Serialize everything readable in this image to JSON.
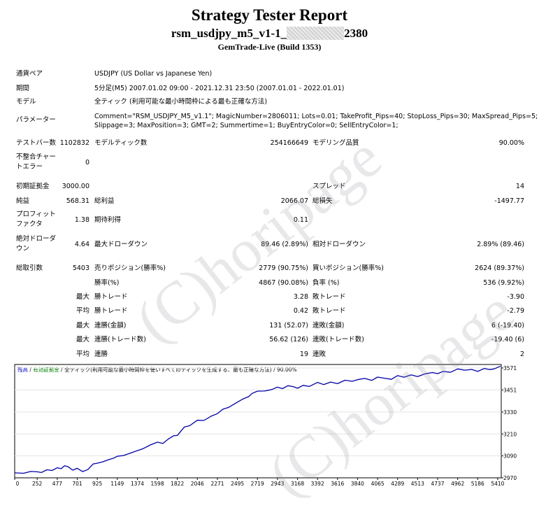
{
  "report": {
    "title": "Strategy Tester Report",
    "subtitle_prefix": "rsm_usdjpy_m5_v1-1_",
    "subtitle_suffix": "2380",
    "build": "GemTrade-Live (Build 1353)"
  },
  "info": {
    "pair_label": "通貨ペア",
    "pair_value": "USDJPY (US Dollar vs Japanese Yen)",
    "period_label": "期間",
    "period_value": "5分足(M5) 2007.01.02 09:00 - 2021.12.31 23:50 (2007.01.01 - 2022.01.01)",
    "model_label": "モデル",
    "model_value": "全ティック (利用可能な最小時間枠による最も正確な方法)",
    "params_label": "パラメーター",
    "params_line1": "Comment=\"RSM_USDJPY_M5_v1.1\"; MagicNumber=2806011; Lots=0.01; TakeProfit_Pips=40; StopLoss_Pips=30; MaxSpread_Pips=5;",
    "params_line2": "Slippage=3; MaxPosition=3; GMT=2; Summertime=1; BuyEntryColor=0; SellEntryColor=1;"
  },
  "stats": {
    "bars_label": "テストバー数",
    "bars_value": "1102832",
    "ticks_label": "モデルティック数",
    "ticks_value": "254166649",
    "quality_label": "モデリング品質",
    "quality_value": "90.00%",
    "mismatch_label1": "不整合チャー",
    "mismatch_label2": "トエラー",
    "mismatch_value": "0",
    "deposit_label": "初期証拠金",
    "deposit_value": "3000.00",
    "spread_label": "スプレッド",
    "spread_value": "14",
    "net_label": "純益",
    "net_value": "568.31",
    "gross_profit_label": "総利益",
    "gross_profit_value": "2066.07",
    "gross_loss_label": "総損失",
    "gross_loss_value": "-1497.77",
    "pf_label1": "プロフィット",
    "pf_label2": "ファクタ",
    "pf_value": "1.38",
    "expected_label": "期待利得",
    "expected_value": "0.11",
    "abs_dd_label1": "絶対ドローダ",
    "abs_dd_label2": "ウン",
    "abs_dd_value": "4.64",
    "max_dd_label": "最大ドローダウン",
    "max_dd_value": "89.46 (2.89%)",
    "rel_dd_label": "相対ドローダウン",
    "rel_dd_value": "2.89% (89.46)",
    "trades_label": "総取引数",
    "trades_value": "5403",
    "short_label": "売りポジション(勝率%)",
    "short_value": "2779 (90.75%)",
    "long_label": "買いポジション(勝率%)",
    "long_value": "2624 (89.37%)",
    "win_pct_label": "勝率(%)",
    "win_pct_value": "4867 (90.08%)",
    "loss_pct_label": "負率 (%)",
    "loss_pct_value": "536 (9.92%)",
    "max_label": "最大",
    "avg_label": "平均",
    "largest_win_label": "勝トレード",
    "largest_win_value": "3.28",
    "largest_loss_label": "敗トレード",
    "largest_loss_value": "-3.90",
    "avg_win_label": "勝トレード",
    "avg_win_value": "0.42",
    "avg_loss_label": "敗トレード",
    "avg_loss_value": "-2.79",
    "consec_wins_amt_label": "連勝(金額)",
    "consec_wins_amt_value": "131 (52.07)",
    "consec_loss_amt_label": "連敗(金額)",
    "consec_loss_amt_value": "6 (-19.40)",
    "consec_wins_trades_label": "連勝(トレード数)",
    "consec_wins_trades_value": "56.62 (126)",
    "consec_loss_trades_label": "連敗(トレード数)",
    "consec_loss_trades_value": "-19.40 (6)",
    "avg_wins_label": "連勝",
    "avg_wins_value": "19",
    "avg_losses_label": "連敗",
    "avg_losses_value": "2"
  },
  "watermark": "(C)horipage",
  "chart_data": {
    "type": "line",
    "legend": {
      "balance": "残高",
      "sep1": " / ",
      "equity": "有効証拠金",
      "sep2": " / ",
      "model": "全ティック(利用可能な最小時間枠を使いすべてのティックを生成する、最も正確な方法)",
      "sep3": " / ",
      "quality": "90.00%"
    },
    "x_ticks": [
      "0",
      "252",
      "477",
      "701",
      "925",
      "1149",
      "1374",
      "1598",
      "1822",
      "2046",
      "2271",
      "2495",
      "2719",
      "2943",
      "3168",
      "3392",
      "3616",
      "3840",
      "4065",
      "4289",
      "4513",
      "4737",
      "4962",
      "5186",
      "5410"
    ],
    "y_ticks": [
      "3571",
      "3451",
      "3330",
      "3210",
      "3090",
      "2970"
    ],
    "xlim": [
      0,
      5450
    ],
    "ylim": [
      2970,
      3590
    ],
    "series": [
      {
        "color": "#0000a8",
        "x": [
          0,
          100,
          180,
          250,
          300,
          360,
          420,
          477,
          520,
          560,
          600,
          650,
          701,
          760,
          820,
          880,
          925,
          990,
          1050,
          1110,
          1149,
          1220,
          1300,
          1374,
          1440,
          1520,
          1598,
          1660,
          1720,
          1780,
          1822,
          1900,
          1960,
          2046,
          2120,
          2200,
          2271,
          2330,
          2400,
          2495,
          2560,
          2620,
          2660,
          2719,
          2800,
          2880,
          2943,
          3000,
          3060,
          3120,
          3168,
          3230,
          3300,
          3392,
          3460,
          3540,
          3616,
          3700,
          3780,
          3840,
          3920,
          4000,
          4065,
          4140,
          4220,
          4289,
          4360,
          4440,
          4513,
          4600,
          4680,
          4737,
          4800,
          4880,
          4962,
          5040,
          5120,
          5186,
          5260,
          5320,
          5370,
          5410,
          5440
        ],
        "y": [
          2997,
          2995,
          3005,
          3003,
          2999,
          3014,
          3010,
          3025,
          3020,
          3036,
          3030,
          3012,
          3022,
          3004,
          3015,
          3046,
          3050,
          3058,
          3069,
          3078,
          3088,
          3092,
          3106,
          3119,
          3130,
          3150,
          3165,
          3158,
          3182,
          3200,
          3202,
          3248,
          3255,
          3285,
          3284,
          3307,
          3321,
          3345,
          3356,
          3384,
          3402,
          3414,
          3432,
          3444,
          3445,
          3453,
          3466,
          3458,
          3474,
          3469,
          3460,
          3476,
          3470,
          3492,
          3480,
          3494,
          3485,
          3504,
          3498,
          3507,
          3514,
          3503,
          3521,
          3515,
          3509,
          3529,
          3520,
          3533,
          3524,
          3539,
          3546,
          3540,
          3552,
          3547,
          3566,
          3559,
          3563,
          3552,
          3568,
          3562,
          3566,
          3574,
          3581
        ]
      }
    ]
  }
}
